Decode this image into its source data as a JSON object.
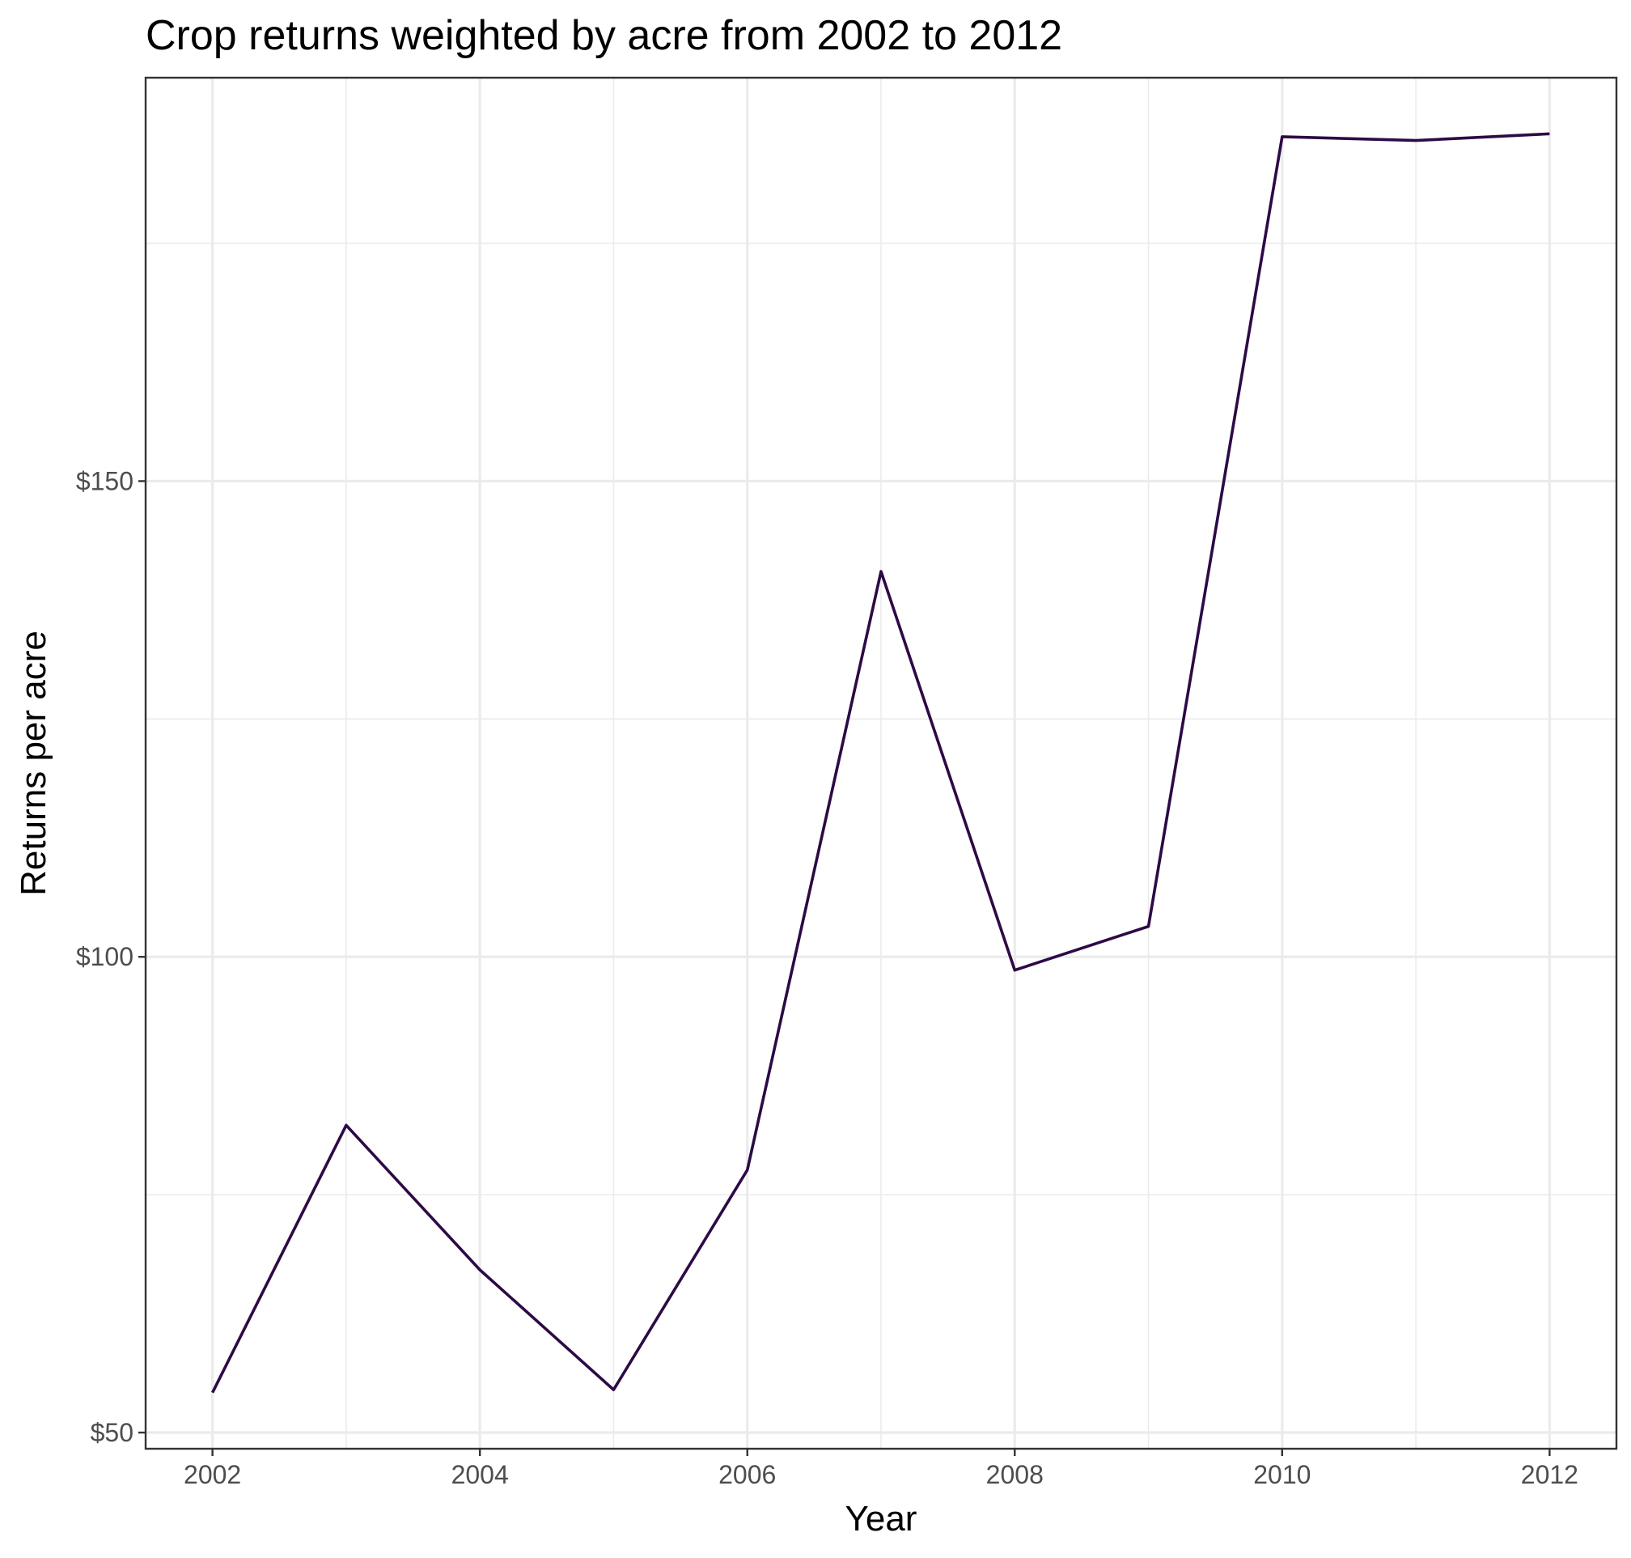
{
  "chart_data": {
    "type": "line",
    "title": "Crop returns weighted by acre from 2002 to 2012",
    "xlabel": "Year",
    "ylabel": "Returns per acre",
    "x": [
      2002,
      2003,
      2004,
      2005,
      2006,
      2007,
      2008,
      2009,
      2010,
      2011,
      2012
    ],
    "series": [
      {
        "values": [
          54.2,
          82.3,
          67.1,
          54.5,
          77.6,
          140.5,
          98.6,
          103.2,
          186.2,
          185.8,
          186.5
        ]
      }
    ],
    "xlim": [
      2001.5,
      2012.5
    ],
    "ylim": [
      48.3,
      192.4
    ],
    "x_ticks": [
      2002,
      2004,
      2006,
      2008,
      2010,
      2012
    ],
    "x_tick_labels": [
      "2002",
      "2004",
      "2006",
      "2008",
      "2010",
      "2012"
    ],
    "y_ticks": [
      50,
      100,
      150
    ],
    "y_tick_labels": [
      "$50",
      "$100",
      "$150"
    ],
    "grid": true,
    "legend": "none",
    "colors": {
      "line": "#2d0a45",
      "grid": "#ebebeb",
      "border": "#333333",
      "tick_text": "#4d4d4d",
      "title_text": "#000000",
      "background": "#ffffff"
    }
  }
}
